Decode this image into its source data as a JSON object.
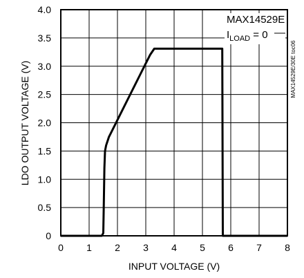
{
  "chart_data": {
    "type": "line",
    "title": "",
    "xlabel": "INPUT VOLTAGE (V)",
    "ylabel": "LDO OUTPUT VOLTAGE (V)",
    "xlim": [
      0,
      8
    ],
    "ylim": [
      0,
      4.0
    ],
    "x_ticks": [
      "0",
      "1",
      "2",
      "3",
      "4",
      "5",
      "6",
      "7",
      "8"
    ],
    "y_ticks": [
      "0",
      "0.5",
      "1.0",
      "1.5",
      "2.0",
      "2.5",
      "3.0",
      "3.5",
      "4.0"
    ],
    "grid": true,
    "annotation": {
      "part": "MAX14529E",
      "condition_main": "I",
      "condition_sub": "LOAD",
      "condition_rest": " = 0"
    },
    "side_code": "MAX14529E/30E toc06",
    "series": [
      {
        "x": [
          0,
          1.45,
          1.5,
          1.52,
          1.54,
          1.56,
          1.6,
          1.7,
          1.8,
          2.0,
          2.2,
          2.5,
          2.8,
          3.0,
          3.15,
          3.3,
          5.7,
          5.72,
          8
        ],
        "y": [
          0,
          0,
          0.05,
          0.6,
          1.2,
          1.5,
          1.6,
          1.75,
          1.85,
          2.05,
          2.25,
          2.55,
          2.85,
          3.05,
          3.2,
          3.31,
          3.31,
          0,
          0
        ]
      }
    ]
  }
}
